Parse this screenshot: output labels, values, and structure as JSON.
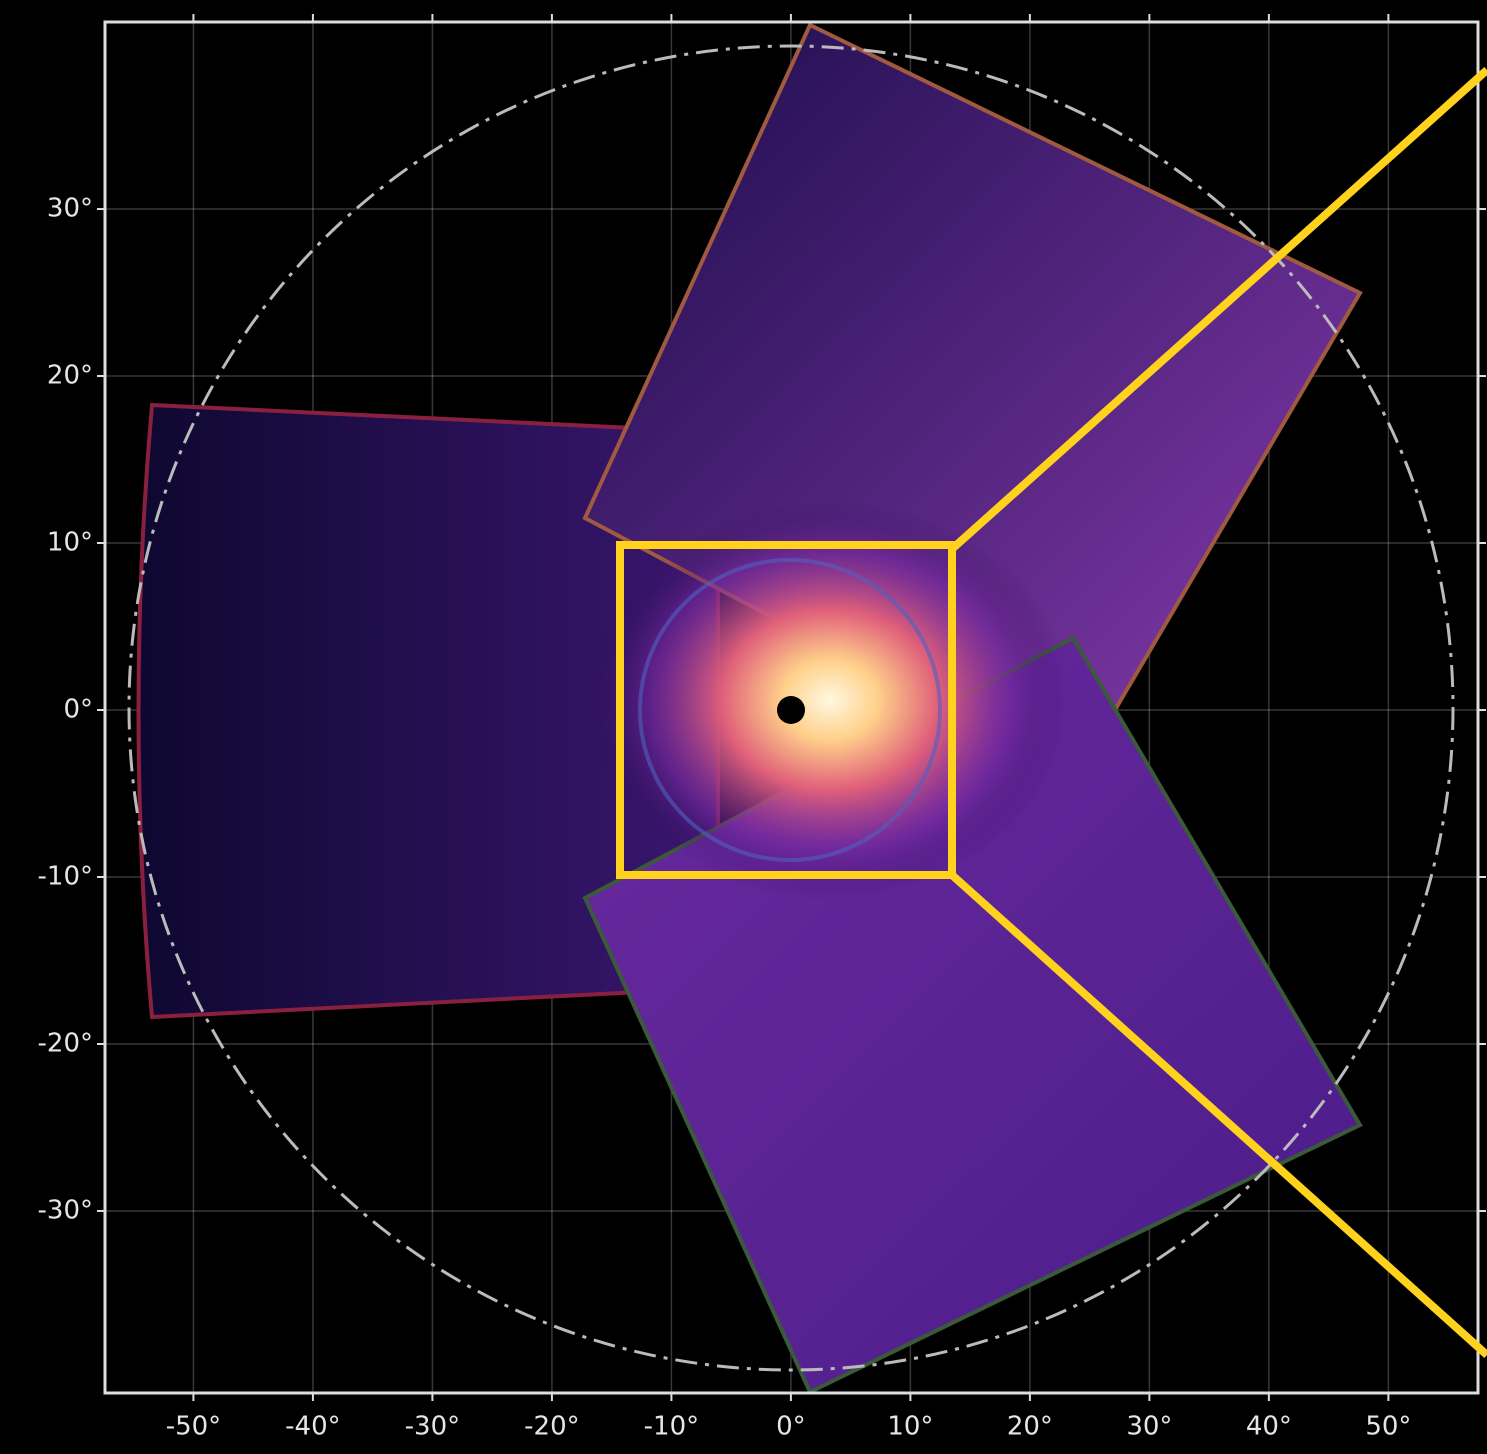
{
  "chart_data": {
    "type": "image",
    "xlim": [
      -57.4,
      57.5
    ],
    "ylim": [
      -40.9,
      41.2
    ],
    "xticks": [
      {
        "value": -50,
        "label": "-50°"
      },
      {
        "value": -40,
        "label": "-40°"
      },
      {
        "value": -30,
        "label": "-30°"
      },
      {
        "value": -20,
        "label": "-20°"
      },
      {
        "value": -10,
        "label": "-10°"
      },
      {
        "value": 0,
        "label": "0°"
      },
      {
        "value": 10,
        "label": "10°"
      },
      {
        "value": 20,
        "label": "20°"
      },
      {
        "value": 30,
        "label": "30°"
      },
      {
        "value": 40,
        "label": "40°"
      },
      {
        "value": 50,
        "label": "50°"
      }
    ],
    "yticks": [
      {
        "value": -30,
        "label": "-30°"
      },
      {
        "value": -20,
        "label": "-20°"
      },
      {
        "value": -10,
        "label": "-10°"
      },
      {
        "value": 0,
        "label": "0°"
      },
      {
        "value": 10,
        "label": "10°"
      },
      {
        "value": 20,
        "label": "20°"
      },
      {
        "value": 30,
        "label": "30°"
      }
    ],
    "grid": true
  }
}
